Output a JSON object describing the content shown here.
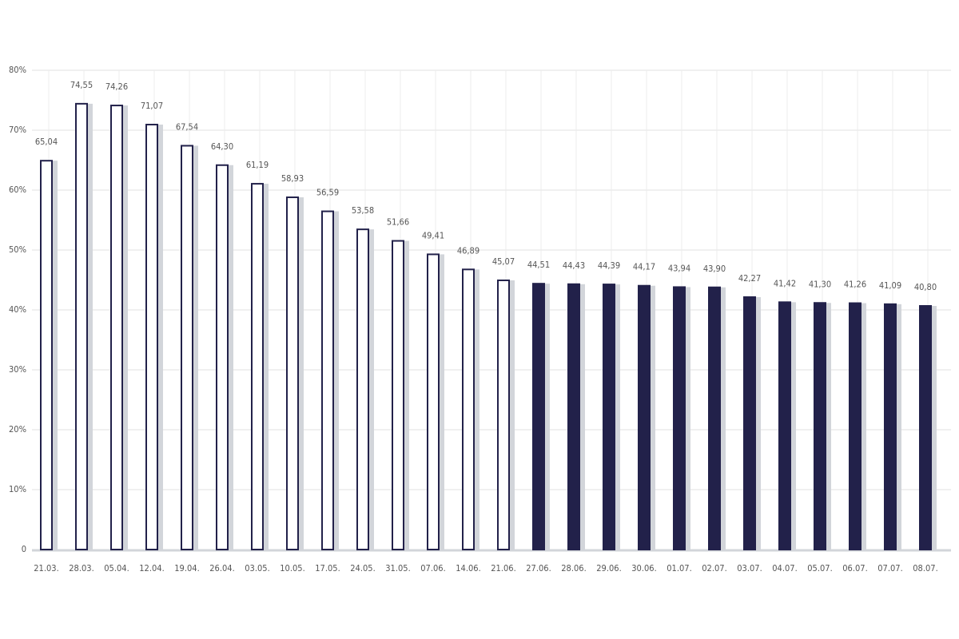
{
  "chart_data": {
    "type": "bar",
    "categories": [
      "21.03.",
      "28.03.",
      "05.04.",
      "12.04.",
      "19.04.",
      "26.04.",
      "03.05.",
      "10.05.",
      "17.05.",
      "24.05.",
      "31.05.",
      "07.06.",
      "14.06.",
      "21.06.",
      "27.06.",
      "28.06.",
      "29.06.",
      "30.06.",
      "01.07.",
      "02.07.",
      "03.07.",
      "04.07.",
      "05.07.",
      "06.07.",
      "07.07.",
      "08.07."
    ],
    "values": [
      65.04,
      74.55,
      74.26,
      71.07,
      67.54,
      64.3,
      61.19,
      58.93,
      56.59,
      53.58,
      51.66,
      49.41,
      46.89,
      45.07,
      44.51,
      44.43,
      44.39,
      44.17,
      43.94,
      43.9,
      42.27,
      41.42,
      41.3,
      41.26,
      41.09,
      40.8
    ],
    "value_labels": [
      "65,04",
      "74,55",
      "74,26",
      "71,07",
      "67,54",
      "64,30",
      "61,19",
      "58,93",
      "56,59",
      "53,58",
      "51,66",
      "49,41",
      "46,89",
      "45,07",
      "44,51",
      "44,43",
      "44,39",
      "44,17",
      "43,94",
      "43,90",
      "42,27",
      "41,42",
      "41,30",
      "41,26",
      "41,09",
      "40,80"
    ],
    "fill_colors": [
      "#ffffff",
      "#ffffff",
      "#ffffff",
      "#ffffff",
      "#ffffff",
      "#ffffff",
      "#ffffff",
      "#ffffff",
      "#ffffff",
      "#ffffff",
      "#ffffff",
      "#ffffff",
      "#ffffff",
      "#ffffff",
      "#22214a",
      "#22214a",
      "#22214a",
      "#22214a",
      "#22214a",
      "#22214a",
      "#22214a",
      "#22214a",
      "#22214a",
      "#22214a",
      "#22214a",
      "#22214a"
    ],
    "stroke_color": "#22214a",
    "shadow_color": "#d2d5da",
    "ylim": [
      0,
      80
    ],
    "yticks": [
      0,
      {
        "value": 10,
        "label": "10%"
      },
      {
        "value": 20,
        "label": "20%"
      },
      {
        "value": 30,
        "label": "30%"
      },
      {
        "value": 40,
        "label": "40%"
      },
      {
        "value": 50,
        "label": "50%"
      },
      {
        "value": 60,
        "label": "60%"
      },
      {
        "value": 70,
        "label": "70%"
      },
      {
        "value": 80,
        "label": "80%"
      }
    ],
    "grid": true
  }
}
